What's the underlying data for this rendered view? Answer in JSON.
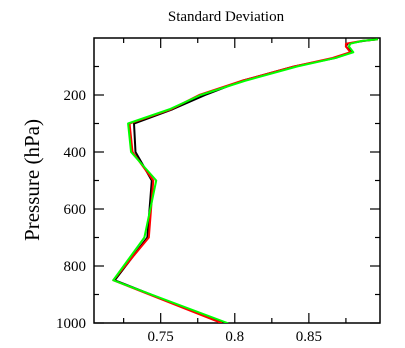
{
  "chart_data": {
    "type": "line",
    "title": "Standard Deviation",
    "xlabel": "",
    "ylabel": "Pressure (hPa)",
    "xlim": [
      0.705,
      0.898
    ],
    "ylim": [
      1000,
      0
    ],
    "y_inverted": true,
    "grid": false,
    "legend": "none",
    "x_major_ticks": [
      0.75,
      0.8,
      0.85
    ],
    "x_tick_labels": [
      "0.75",
      "0.8",
      "0.85"
    ],
    "x_minor_ticks": [
      0.725,
      0.775,
      0.825,
      0.875
    ],
    "y_major_ticks": [
      200,
      400,
      600,
      800,
      1000
    ],
    "y_tick_labels": [
      "200",
      "400",
      "600",
      "800",
      "1000"
    ],
    "y_minor_ticks": [
      100,
      300,
      500,
      700,
      900
    ],
    "y_levels": [
      5,
      10,
      20,
      30,
      50,
      70,
      100,
      150,
      200,
      250,
      300,
      400,
      500,
      700,
      850,
      1000
    ],
    "series": [
      {
        "color": "#000000",
        "values": [
          0.896,
          0.887,
          0.876,
          0.875,
          0.879,
          0.868,
          0.84,
          0.805,
          0.78,
          0.758,
          0.732,
          0.733,
          0.744,
          0.741,
          0.719,
          0.792
        ]
      },
      {
        "color": "#ff0000",
        "values": [
          0.896,
          0.886,
          0.875,
          0.875,
          0.878,
          0.866,
          0.84,
          0.805,
          0.776,
          0.757,
          0.729,
          0.731,
          0.745,
          0.742,
          0.718,
          0.791
        ]
      },
      {
        "color": "#00ff00",
        "values": [
          0.896,
          0.886,
          0.878,
          0.877,
          0.88,
          0.868,
          0.842,
          0.807,
          0.777,
          0.756,
          0.728,
          0.73,
          0.747,
          0.739,
          0.718,
          0.795
        ]
      }
    ]
  }
}
